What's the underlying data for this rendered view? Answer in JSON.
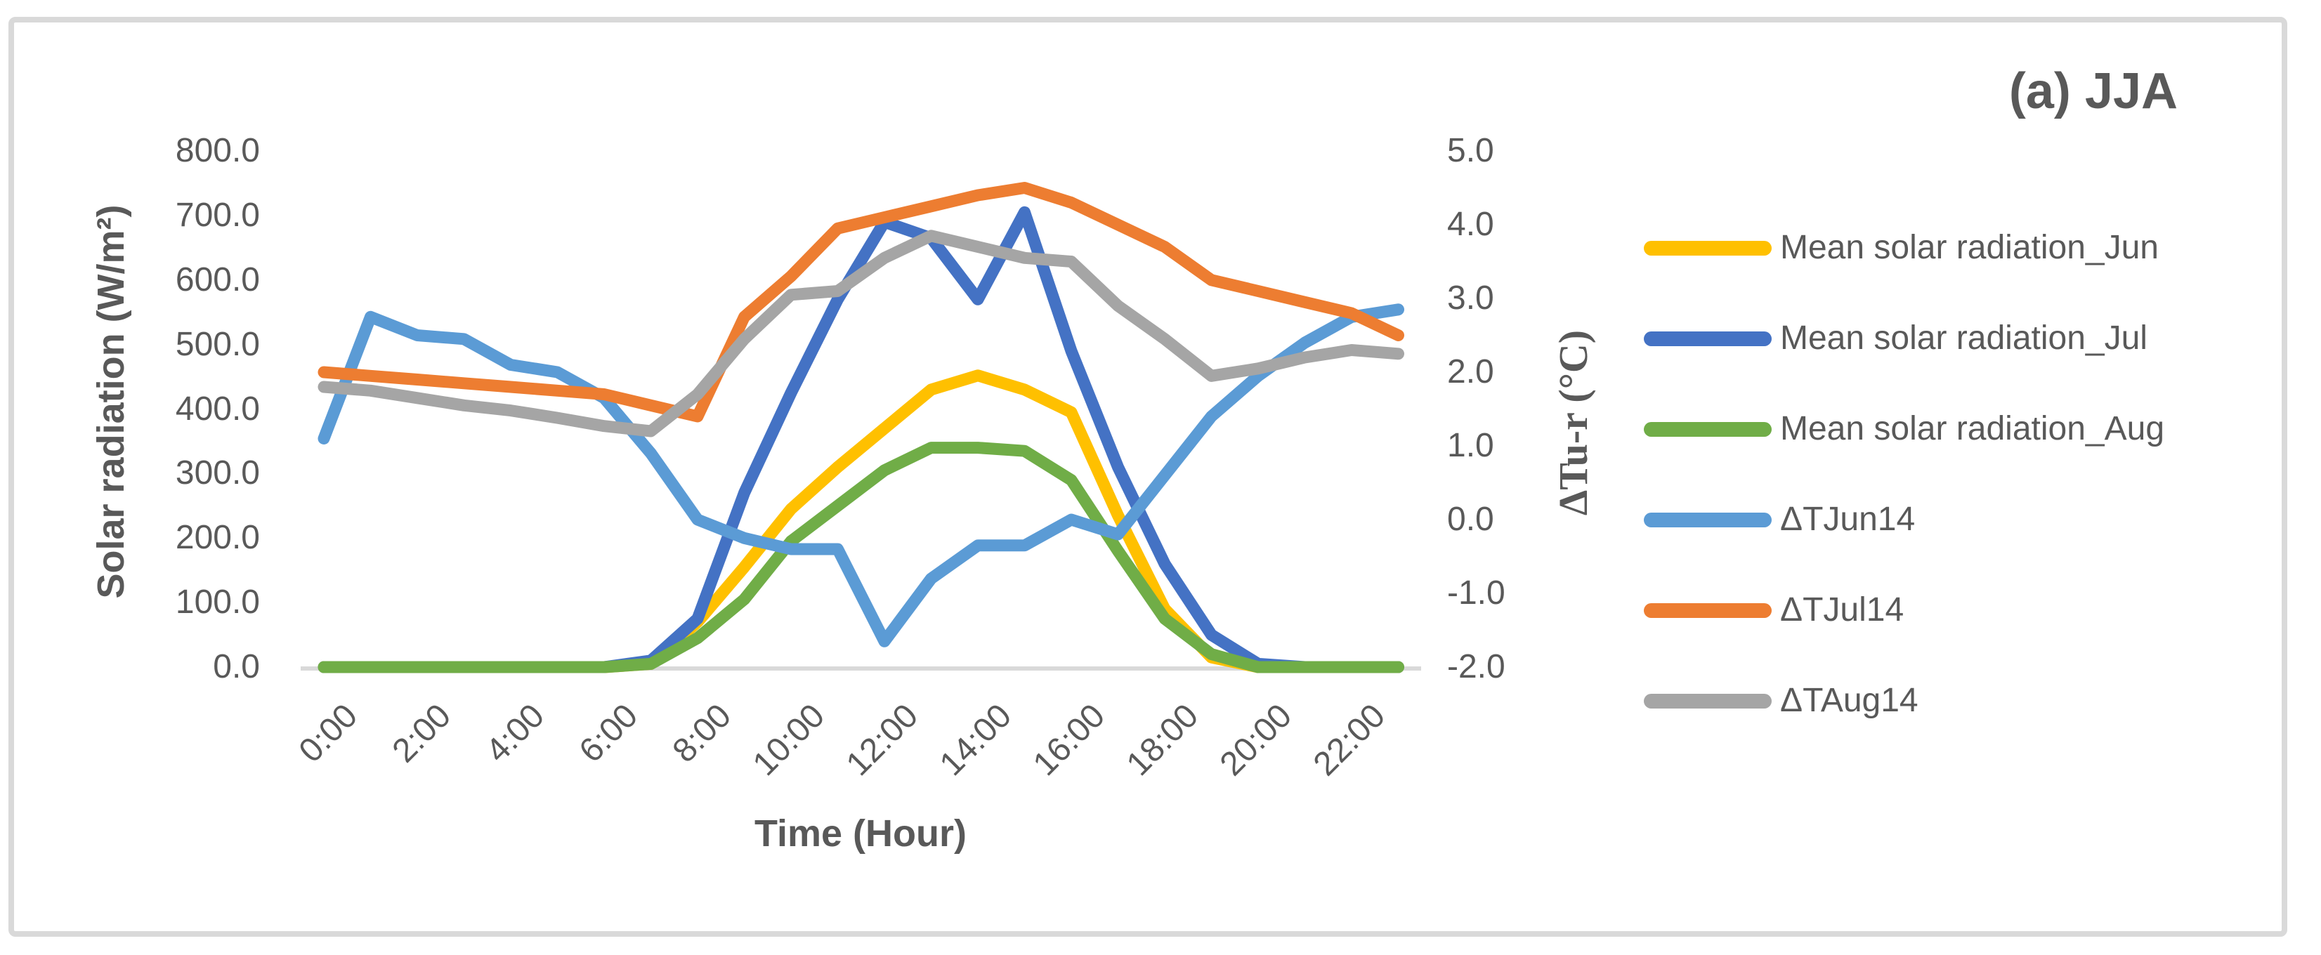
{
  "title": "(a) JJA",
  "chart_data": {
    "type": "line",
    "title": "(a) JJA",
    "legend_position": "right",
    "grid": "zero-baseline-only",
    "x": {
      "label": "Time (Hour)",
      "categories": [
        "0:00",
        "1:00",
        "2:00",
        "3:00",
        "4:00",
        "5:00",
        "6:00",
        "7:00",
        "8:00",
        "9:00",
        "10:00",
        "11:00",
        "12:00",
        "13:00",
        "14:00",
        "15:00",
        "16:00",
        "17:00",
        "18:00",
        "19:00",
        "20:00",
        "21:00",
        "22:00",
        "23:00"
      ],
      "tick_labels": [
        "0:00",
        "2:00",
        "4:00",
        "6:00",
        "8:00",
        "10:00",
        "12:00",
        "14:00",
        "16:00",
        "18:00",
        "20:00",
        "22:00"
      ]
    },
    "axis_left": {
      "label": "Solar radiation (W/m²)",
      "range": [
        0,
        800
      ],
      "ticks": [
        "800.0",
        "700.0",
        "600.0",
        "500.0",
        "400.0",
        "300.0",
        "200.0",
        "100.0",
        "0.0"
      ]
    },
    "axis_right": {
      "label": "ΔTu-r (°C)",
      "range": [
        -2,
        5
      ],
      "ticks": [
        "5.0",
        "4.0",
        "3.0",
        "2.0",
        "1.0",
        "0.0",
        "-1.0",
        "-2.0"
      ]
    },
    "series": [
      {
        "name": "Mean solar radiation_Jun",
        "axis": "left",
        "color": "#FFC000",
        "values": [
          0,
          0,
          0,
          0,
          0,
          0,
          0,
          5,
          70,
          155,
          245,
          310,
          370,
          430,
          452,
          430,
          395,
          235,
          90,
          15,
          0,
          0,
          0,
          0
        ]
      },
      {
        "name": "Mean solar radiation_Jul",
        "axis": "left",
        "color": "#4472C4",
        "values": [
          0,
          0,
          0,
          0,
          0,
          0,
          0,
          10,
          75,
          270,
          425,
          570,
          690,
          665,
          570,
          705,
          490,
          310,
          160,
          50,
          5,
          0,
          0,
          0
        ]
      },
      {
        "name": "Mean solar radiation_Aug",
        "axis": "left",
        "color": "#70AD47",
        "values": [
          0,
          0,
          0,
          0,
          0,
          0,
          0,
          5,
          45,
          105,
          195,
          250,
          305,
          340,
          340,
          335,
          290,
          180,
          75,
          20,
          0,
          0,
          0,
          0
        ]
      },
      {
        "name": "ΔTJun14",
        "axis": "right",
        "color": "#5B9BD5",
        "values": [
          1.1,
          2.75,
          2.5,
          2.45,
          2.1,
          2.0,
          1.65,
          0.9,
          0.0,
          -0.25,
          -0.4,
          -0.4,
          -1.65,
          -0.8,
          -0.35,
          -0.35,
          0.0,
          -0.2,
          0.6,
          1.4,
          1.95,
          2.4,
          2.75,
          2.85
        ]
      },
      {
        "name": "ΔTJul14",
        "axis": "right",
        "color": "#ED7D31",
        "values": [
          2.0,
          1.95,
          1.9,
          1.85,
          1.8,
          1.75,
          1.7,
          1.55,
          1.4,
          2.75,
          3.3,
          3.95,
          4.1,
          4.25,
          4.4,
          4.5,
          4.3,
          4.0,
          3.7,
          3.25,
          3.1,
          2.95,
          2.8,
          2.5
        ]
      },
      {
        "name": "ΔTAug14",
        "axis": "right",
        "color": "#A5A5A5",
        "values": [
          1.8,
          1.75,
          1.65,
          1.55,
          1.48,
          1.38,
          1.27,
          1.2,
          1.7,
          2.45,
          3.05,
          3.1,
          3.55,
          3.85,
          3.7,
          3.55,
          3.5,
          2.9,
          2.45,
          1.95,
          2.05,
          2.2,
          2.3,
          2.25
        ]
      }
    ]
  },
  "colors": {
    "text": "#595959",
    "baseline": "#D9D9D9",
    "border": "#D9D9D9"
  }
}
